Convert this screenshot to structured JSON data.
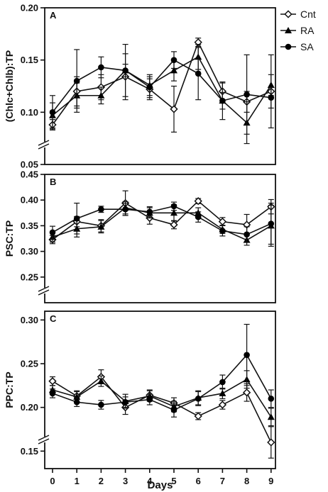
{
  "chart_data": [
    {
      "type": "line",
      "panel_label": "A",
      "ylabel": "(Chlc+Chlb):TP",
      "ylim": [
        0.05,
        0.2
      ],
      "yticks": [
        "0.05",
        "0.10",
        "0.15",
        "0.20"
      ],
      "axis_break": true,
      "x": [
        0,
        1,
        2,
        3,
        4,
        5,
        6,
        7,
        8,
        9
      ],
      "series": [
        {
          "name": "Cnt",
          "values": [
            0.088,
            0.12,
            0.124,
            0.134,
            0.122,
            0.103,
            0.167,
            0.12,
            0.11,
            0.12
          ],
          "err": [
            0.005,
            0.014,
            0.012,
            0.022,
            0.01,
            0.022,
            0.004,
            0.008,
            0.01,
            0.035
          ]
        },
        {
          "name": "RA",
          "values": [
            0.097,
            0.116,
            0.116,
            0.14,
            0.126,
            0.14,
            0.153,
            0.111,
            0.09,
            0.126
          ],
          "err": [
            0.012,
            0.012,
            0.008,
            0.006,
            0.01,
            0.01,
            0.012,
            0.008,
            0.02,
            0.01
          ]
        },
        {
          "name": "SA",
          "values": [
            0.1,
            0.13,
            0.143,
            0.14,
            0.124,
            0.15,
            0.137,
            0.111,
            0.117,
            0.114
          ],
          "err": [
            0.016,
            0.03,
            0.01,
            0.025,
            0.01,
            0.008,
            0.025,
            0.018,
            0.038,
            0.01
          ]
        }
      ]
    },
    {
      "type": "line",
      "panel_label": "B",
      "ylabel": "PSC:TP",
      "ylim": [
        0.2,
        0.45
      ],
      "yticks": [
        "0.25",
        "0.30",
        "0.35",
        "0.40",
        "0.45"
      ],
      "axis_break": true,
      "x": [
        0,
        1,
        2,
        3,
        4,
        5,
        6,
        7,
        8,
        9
      ],
      "series": [
        {
          "name": "Cnt",
          "values": [
            0.323,
            0.358,
            0.35,
            0.394,
            0.365,
            0.352,
            0.398,
            0.358,
            0.352,
            0.387
          ],
          "err": [
            0.008,
            0.01,
            0.012,
            0.024,
            0.012,
            0.008,
            0.005,
            0.008,
            0.02,
            0.014
          ]
        },
        {
          "name": "RA",
          "values": [
            0.328,
            0.344,
            0.348,
            0.385,
            0.375,
            0.375,
            0.375,
            0.343,
            0.322,
            0.35
          ],
          "err": [
            0.01,
            0.016,
            0.012,
            0.012,
            0.01,
            0.016,
            0.01,
            0.008,
            0.01,
            0.04
          ]
        },
        {
          "name": "SA",
          "values": [
            0.337,
            0.364,
            0.382,
            0.382,
            0.377,
            0.388,
            0.367,
            0.34,
            0.333,
            0.354
          ],
          "err": [
            0.012,
            0.03,
            0.006,
            0.012,
            0.01,
            0.008,
            0.01,
            0.01,
            0.015,
            0.04
          ]
        }
      ]
    },
    {
      "type": "line",
      "panel_label": "C",
      "ylabel": "PPC:TP",
      "xlabel": "Days",
      "ylim": [
        0.13,
        0.31
      ],
      "yticks": [
        "0.15",
        "0.20",
        "0.25",
        "0.30"
      ],
      "axis_break": true,
      "x": [
        0,
        1,
        2,
        3,
        4,
        5,
        6,
        7,
        8,
        9
      ],
      "xticks": [
        "0",
        "1",
        "2",
        "3",
        "4",
        "5",
        "6",
        "7",
        "8",
        "9"
      ],
      "series": [
        {
          "name": "Cnt",
          "values": [
            0.23,
            0.213,
            0.235,
            0.2,
            0.214,
            0.205,
            0.19,
            0.203,
            0.217,
            0.16
          ],
          "err": [
            0.005,
            0.006,
            0.008,
            0.008,
            0.006,
            0.006,
            0.004,
            0.005,
            0.01,
            0.018
          ]
        },
        {
          "name": "RA",
          "values": [
            0.22,
            0.212,
            0.23,
            0.207,
            0.213,
            0.201,
            0.211,
            0.216,
            0.232,
            0.189
          ],
          "err": [
            0.005,
            0.006,
            0.006,
            0.008,
            0.006,
            0.006,
            0.008,
            0.006,
            0.01,
            0.01
          ]
        },
        {
          "name": "SA",
          "values": [
            0.216,
            0.206,
            0.203,
            0.206,
            0.209,
            0.197,
            0.21,
            0.229,
            0.26,
            0.21
          ],
          "err": [
            0.005,
            0.005,
            0.005,
            0.006,
            0.006,
            0.008,
            0.008,
            0.008,
            0.035,
            0.01
          ]
        }
      ]
    }
  ],
  "legend": {
    "items": [
      {
        "name": "Cnt",
        "marker": "diamond-open"
      },
      {
        "name": "RA",
        "marker": "triangle"
      },
      {
        "name": "SA",
        "marker": "circle"
      }
    ]
  },
  "colors": {
    "axis": "#111111",
    "marker_fill": "#000000",
    "open_fill": "#ffffff"
  }
}
